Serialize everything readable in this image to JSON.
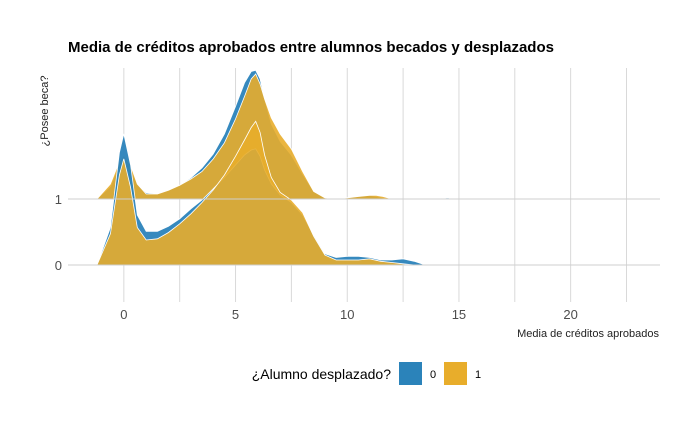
{
  "chart_data": {
    "type": "area",
    "subtype": "ridgeline-density",
    "title": "Media de créditos aprobados entre alumnos becados y desplazados",
    "xlabel": "Media de créditos aprobados",
    "ylabel": "¿Posee beca?",
    "xlim": [
      -2.5,
      24
    ],
    "x_ticks": [
      0,
      5,
      10,
      15,
      20
    ],
    "x_tick_labels": [
      "0",
      "5",
      "10",
      "15",
      "20"
    ],
    "y_categories": [
      "1",
      "0"
    ],
    "grid": true,
    "legend": {
      "title": "¿Alumno desplazado?",
      "position": "bottom",
      "entries": [
        "0",
        "1"
      ]
    },
    "colors": {
      "0": "#2b83ba",
      "1": "#e8ad2b",
      "grid": "#d9d9d9",
      "text": "#4d4d4d"
    },
    "ridges": [
      {
        "category": "1",
        "series": [
          {
            "name": "0",
            "x": [
              -1.2,
              -0.6,
              -0.2,
              0.0,
              0.3,
              0.6,
              1.0,
              1.5,
              2.0,
              2.5,
              3.0,
              3.5,
              4.0,
              4.5,
              5.0,
              5.4,
              5.7,
              5.9,
              6.1,
              6.3,
              6.6,
              7.0,
              7.5,
              8.0,
              8.5,
              9.0,
              9.5,
              10.0,
              10.5,
              11.0,
              11.3,
              11.6,
              12.0,
              12.4,
              13.0,
              14.0,
              14.5,
              14.8,
              15.2
            ],
            "y": [
              0.0,
              0.1,
              0.28,
              0.33,
              0.25,
              0.12,
              0.05,
              0.04,
              0.07,
              0.11,
              0.17,
              0.25,
              0.36,
              0.52,
              0.74,
              0.93,
              1.02,
              1.03,
              0.96,
              0.8,
              0.6,
              0.46,
              0.35,
              0.2,
              0.06,
              0.01,
              0.0,
              0.01,
              0.02,
              0.03,
              0.02,
              0.01,
              0.0,
              0.0,
              0.0,
              0.0,
              0.01,
              0.0,
              0.0
            ]
          },
          {
            "name": "1",
            "x": [
              -1.2,
              -0.6,
              -0.2,
              0.0,
              0.3,
              0.6,
              1.0,
              1.5,
              2.0,
              2.5,
              3.0,
              3.5,
              4.0,
              4.5,
              5.0,
              5.4,
              5.7,
              5.9,
              6.1,
              6.3,
              6.6,
              7.0,
              7.5,
              8.0,
              8.5,
              9.0,
              9.5,
              10.0,
              10.5,
              11.0,
              11.3,
              11.6,
              12.0,
              12.4,
              13.0,
              14.0,
              14.5,
              14.8,
              15.2
            ],
            "y": [
              0.0,
              0.12,
              0.3,
              0.35,
              0.27,
              0.12,
              0.04,
              0.04,
              0.07,
              0.11,
              0.16,
              0.22,
              0.32,
              0.45,
              0.64,
              0.82,
              0.96,
              1.0,
              0.92,
              0.8,
              0.65,
              0.52,
              0.4,
              0.22,
              0.06,
              0.01,
              0.0,
              0.01,
              0.02,
              0.03,
              0.03,
              0.02,
              0.0,
              0.0,
              0.0,
              0.0,
              0.0,
              0.0,
              0.0
            ]
          }
        ]
      },
      {
        "category": "0",
        "series": [
          {
            "name": "0",
            "x": [
              -1.2,
              -0.6,
              -0.2,
              0.0,
              0.3,
              0.6,
              1.0,
              1.5,
              2.0,
              2.5,
              3.0,
              3.5,
              4.0,
              4.5,
              5.0,
              5.4,
              5.7,
              5.9,
              6.1,
              6.3,
              6.6,
              7.0,
              7.5,
              8.0,
              8.5,
              9.0,
              9.5,
              10.0,
              10.5,
              11.0,
              11.5,
              12.0,
              12.5,
              13.0,
              13.5
            ],
            "y": [
              0.0,
              0.3,
              0.9,
              1.05,
              0.8,
              0.4,
              0.27,
              0.27,
              0.31,
              0.37,
              0.45,
              0.52,
              0.61,
              0.7,
              0.8,
              0.88,
              0.92,
              0.93,
              0.87,
              0.76,
              0.65,
              0.56,
              0.5,
              0.4,
              0.24,
              0.09,
              0.06,
              0.07,
              0.07,
              0.06,
              0.04,
              0.04,
              0.05,
              0.03,
              0.0
            ]
          },
          {
            "name": "1",
            "x": [
              -1.2,
              -0.6,
              -0.2,
              0.0,
              0.3,
              0.6,
              1.0,
              1.5,
              2.0,
              2.5,
              3.0,
              3.5,
              4.0,
              4.5,
              5.0,
              5.4,
              5.7,
              5.9,
              6.1,
              6.3,
              6.6,
              7.0,
              7.5,
              8.0,
              8.5,
              9.0,
              9.5,
              10.0,
              10.5,
              11.0,
              11.5,
              12.0,
              12.5,
              13.0,
              13.5
            ],
            "y": [
              0.0,
              0.25,
              0.72,
              0.85,
              0.62,
              0.3,
              0.2,
              0.21,
              0.26,
              0.33,
              0.41,
              0.5,
              0.6,
              0.72,
              0.87,
              1.0,
              1.1,
              1.15,
              1.06,
              0.88,
              0.7,
              0.58,
              0.52,
              0.42,
              0.23,
              0.08,
              0.04,
              0.04,
              0.04,
              0.05,
              0.03,
              0.02,
              0.01,
              0.0,
              0.0
            ]
          }
        ]
      }
    ]
  }
}
